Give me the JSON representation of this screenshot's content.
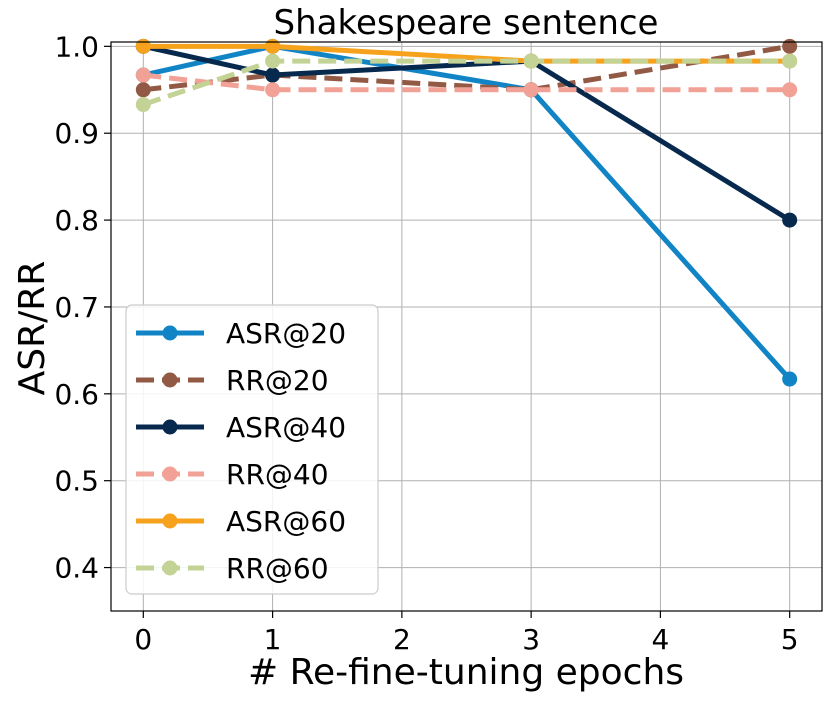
{
  "chart_data": {
    "type": "line",
    "title": "Shakespeare sentence",
    "xlabel": "# Re-fine-tuning epochs",
    "ylabel": "ASR/RR",
    "x": [
      0,
      1,
      3,
      5
    ],
    "xticks": [
      "0",
      "1",
      "2",
      "3",
      "4",
      "5"
    ],
    "yticks": [
      "0.4",
      "0.5",
      "0.6",
      "0.7",
      "0.8",
      "0.9",
      "1.0"
    ],
    "xlim": [
      -0.25,
      5.25
    ],
    "ylim": [
      0.35,
      1.005
    ],
    "grid": true,
    "legend_position": "lower-left",
    "series": [
      {
        "name": "ASR@20",
        "values": [
          0.967,
          1.0,
          0.95,
          0.617
        ],
        "color": "#1184c5",
        "dashed": false
      },
      {
        "name": "RR@20",
        "values": [
          0.95,
          0.967,
          0.95,
          1.0
        ],
        "color": "#925a45",
        "dashed": true
      },
      {
        "name": "ASR@40",
        "values": [
          1.0,
          0.967,
          0.983,
          0.8
        ],
        "color": "#06294d",
        "dashed": false
      },
      {
        "name": "RR@40",
        "values": [
          0.967,
          0.95,
          0.95,
          0.95
        ],
        "color": "#f2a196",
        "dashed": true
      },
      {
        "name": "ASR@60",
        "values": [
          1.0,
          1.0,
          0.983,
          0.983
        ],
        "color": "#f6a21d",
        "dashed": false
      },
      {
        "name": "RR@60",
        "values": [
          0.933,
          0.983,
          0.983,
          0.983
        ],
        "color": "#c3d396",
        "dashed": true
      }
    ]
  }
}
